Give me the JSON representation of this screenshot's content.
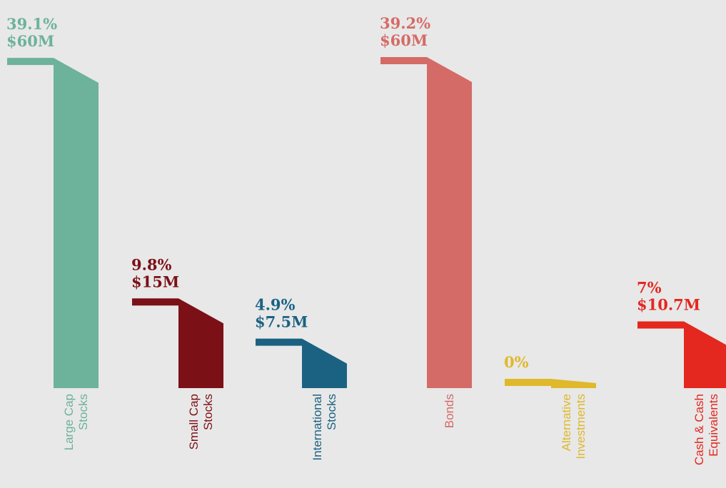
{
  "chart_data": {
    "type": "flag-bar",
    "categories": [
      [
        "Large Cap",
        "Stocks"
      ],
      [
        "Small Cap",
        "Stocks"
      ],
      [
        "International",
        "Stocks"
      ],
      [
        "Bonds"
      ],
      [
        "Alternative",
        "Investments"
      ],
      [
        "Cash & Cash",
        "Equivalents"
      ]
    ],
    "colors": [
      "#6db29a",
      "#7b1116",
      "#1b6282",
      "#d46b66",
      "#e0b82b",
      "#e4271f"
    ],
    "series": [
      {
        "name": "Share",
        "values": [
          39.1,
          9.8,
          4.9,
          39.2,
          0,
          7
        ],
        "value_labels": [
          "39.1%",
          "9.8%",
          "4.9%",
          "39.2%",
          "0%",
          "7%"
        ]
      },
      {
        "name": "Amount",
        "values": [
          60000000,
          15000000,
          7500000,
          60000000,
          null,
          10700000
        ],
        "value_labels": [
          "$60M",
          "$15M",
          "$7.5M",
          "$60M",
          null,
          "$10.7M"
        ]
      }
    ]
  }
}
